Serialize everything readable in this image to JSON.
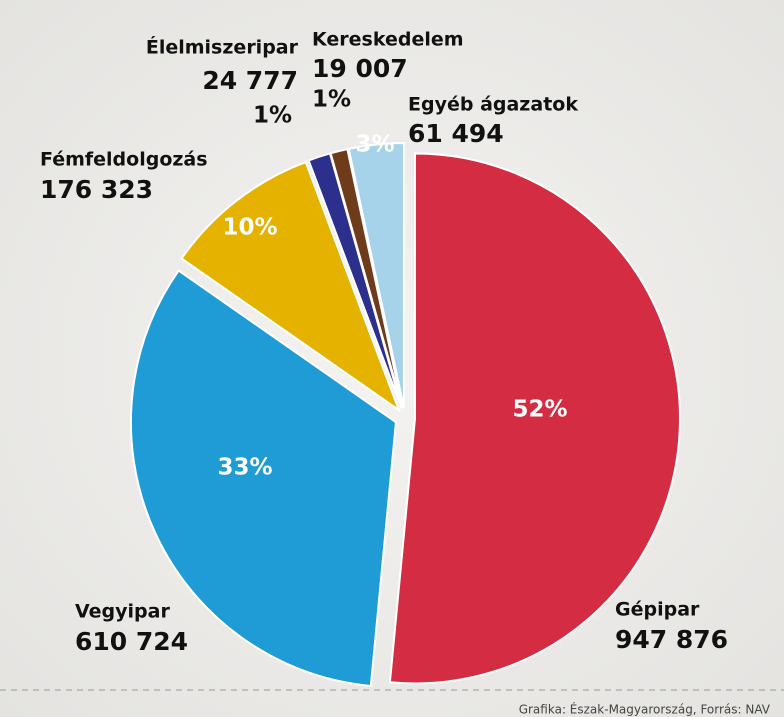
{
  "chart_data": {
    "type": "pie",
    "categories": [
      "Gépipar",
      "Vegyipar",
      "Fémfeldolgozás",
      "Élelmiszeripar",
      "Kereskedelem",
      "Egyéb ágazatok"
    ],
    "values": [
      947876,
      610724,
      176323,
      24777,
      19007,
      61494
    ],
    "value_labels": [
      "947 876",
      "610 724",
      "176 323",
      "24 777",
      "19 007",
      "61 494"
    ],
    "shares": [
      52,
      33,
      10,
      1,
      1,
      3
    ],
    "share_labels": [
      "52%",
      "33%",
      "10%",
      "1%",
      "1%",
      "3%"
    ],
    "colors": [
      "#d42c43",
      "#1f9bd6",
      "#e6b200",
      "#2c2f8c",
      "#6e3b1b",
      "#a6d3ea"
    ],
    "footer": "Grafika: Észak-Magyarország, Forrás: NAV"
  }
}
